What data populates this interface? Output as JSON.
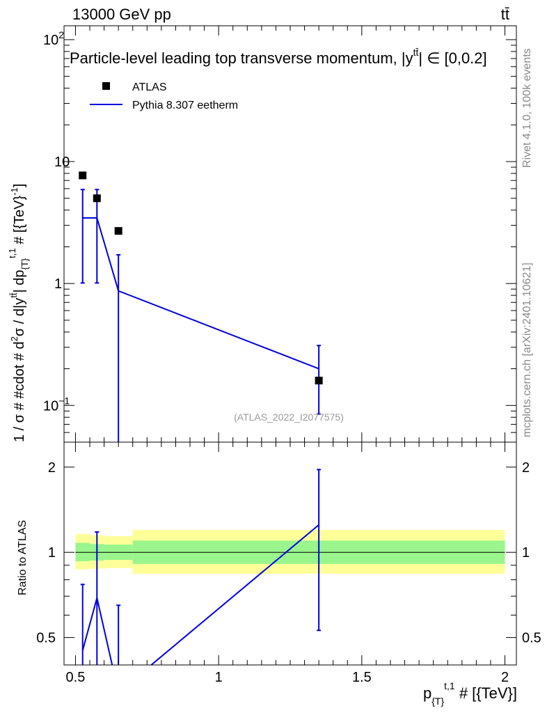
{
  "header": {
    "energy": "13000 GeV pp",
    "process": "tt̄"
  },
  "side_labels": {
    "rivet": "Rivet 4.1.0,  100k events",
    "source": "mcplots.cern.ch [arXiv:2401.10621]"
  },
  "chart_data": [
    {
      "type": "scatter",
      "panel": "main",
      "title": "Particle-level leading top transverse momentum, |y^{tt̄}| ∈ [0,0.2]",
      "title_text": "Particle-level leading top transverse momentum, |y",
      "title_sup": "tt̄",
      "title_tail": "| ∈ [0,0.2]",
      "ylabel": "1 / σ # #cdot # d²σ / d|y^{tt̄}| dp_{T}^{t,1} # [{TeV}⁻¹]",
      "ylabel_parts": {
        "main": "1 / σ # #cdot # d",
        "sq": "2",
        "mid": "σ / d|y",
        "ttbar": "tt̄",
        "mid2": "| dp",
        "sub": "{T}",
        "sup": "t,1",
        "tail": " # [{TeV}",
        "exp": "-1",
        "end": "]"
      },
      "yscale": "log",
      "xlim": [
        0.46,
        2.04
      ],
      "ylim": [
        0.05,
        130
      ],
      "y_ticks": [
        {
          "value": 0.1,
          "label": "10",
          "exp": "−1"
        },
        {
          "value": 1,
          "label": "1",
          "exp": ""
        },
        {
          "value": 10,
          "label": "10",
          "exp": ""
        },
        {
          "value": 100,
          "label": "10",
          "exp": "2"
        }
      ],
      "legend": [
        {
          "name": "ATLAS",
          "style": "square-marker",
          "color": "#000000"
        },
        {
          "name": "Pythia 8.307 eetherm",
          "style": "line",
          "color": "#0000dd"
        }
      ],
      "watermark": "(ATLAS_2022_I2077575)",
      "series": [
        {
          "name": "ATLAS",
          "x": [
            0.525,
            0.575,
            0.65,
            1.35
          ],
          "y": [
            7.7,
            5.0,
            2.7,
            0.16
          ]
        },
        {
          "name": "Pythia 8.307 eetherm",
          "x": [
            0.525,
            0.575,
            0.65,
            1.35
          ],
          "y": [
            3.45,
            3.45,
            0.87,
            0.2
          ],
          "y_err_low": [
            1.01,
            1.01,
            0.04,
            0.085
          ],
          "y_err_high": [
            5.9,
            5.9,
            1.72,
            0.31
          ],
          "steps": [
            {
              "x0": 0.525,
              "x1": 0.575,
              "y": 3.45
            }
          ]
        }
      ]
    },
    {
      "type": "line",
      "panel": "ratio",
      "ylabel": "Ratio to ATLAS",
      "yscale": "log",
      "xlim": [
        0.46,
        2.04
      ],
      "ylim": [
        0.4,
        2.45
      ],
      "y_ticks": [
        {
          "value": 0.5,
          "label": "0.5"
        },
        {
          "value": 1,
          "label": "1"
        },
        {
          "value": 2,
          "label": "2"
        }
      ],
      "x_ticks": [
        {
          "value": 0.5,
          "label": "0.5"
        },
        {
          "value": 1,
          "label": "1"
        },
        {
          "value": 1.5,
          "label": "1.5"
        },
        {
          "value": 2,
          "label": "2"
        }
      ],
      "xlabel": "p_{T}^{t,1} # [{TeV}]",
      "xlabel_parts": {
        "p": "p",
        "sub": "{T}",
        "sup": "t,1",
        "tail": " # [{TeV}]"
      },
      "bands": [
        {
          "x0": 0.5,
          "x1": 0.55,
          "yellow": [
            0.87,
            1.16
          ],
          "green": [
            0.93,
            1.08
          ]
        },
        {
          "x0": 0.55,
          "x1": 0.6,
          "yellow": [
            0.875,
            1.15
          ],
          "green": [
            0.935,
            1.07
          ]
        },
        {
          "x0": 0.6,
          "x1": 0.7,
          "yellow": [
            0.88,
            1.14
          ],
          "green": [
            0.94,
            1.065
          ]
        },
        {
          "x0": 0.7,
          "x1": 2.0,
          "yellow": [
            0.84,
            1.2
          ],
          "green": [
            0.91,
            1.1
          ]
        }
      ],
      "reference": 1.0,
      "series": [
        {
          "name": "Pythia 8.307 eetherm",
          "x": [
            0.525,
            0.575,
            0.65,
            1.35
          ],
          "y": [
            0.45,
            0.69,
            0.32,
            1.25
          ],
          "y_err_low": [
            0.15,
            0.2,
            0.01,
            0.53
          ],
          "y_err_high": [
            0.77,
            1.18,
            0.65,
            1.96
          ]
        }
      ]
    }
  ]
}
